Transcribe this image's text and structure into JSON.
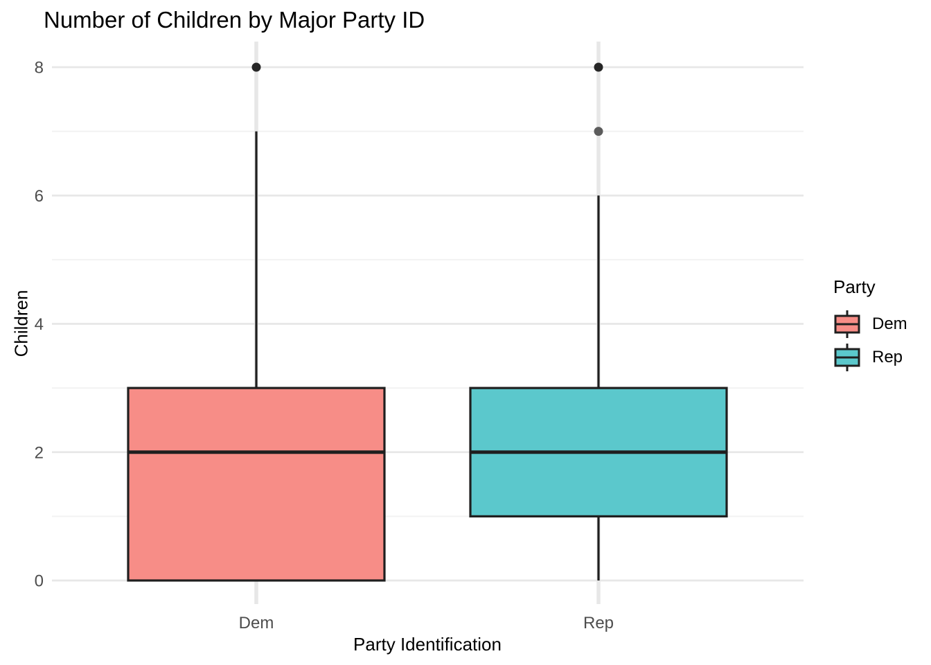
{
  "chart_data": {
    "type": "boxplot",
    "title": "Number of Children by Major Party ID",
    "xlabel": "Party Identification",
    "ylabel": "Children",
    "categories": [
      "Dem",
      "Rep"
    ],
    "y_ticks": [
      0,
      2,
      4,
      6,
      8
    ],
    "y_minor_ticks": [
      1,
      3,
      5,
      7
    ],
    "ylim": [
      0,
      8
    ],
    "grid": true,
    "legend": {
      "title": "Party",
      "position": "right",
      "items": [
        {
          "label": "Dem",
          "color": "#F78D87"
        },
        {
          "label": "Rep",
          "color": "#5BC8CC"
        }
      ]
    },
    "series": [
      {
        "name": "Dem",
        "color": "#F78D87",
        "whisker_low": 0,
        "q1": 0,
        "median": 2,
        "q3": 3,
        "whisker_high": 7,
        "outliers": [
          {
            "value": 8,
            "color": "#262626"
          }
        ]
      },
      {
        "name": "Rep",
        "color": "#5BC8CC",
        "whisker_low": 0,
        "q1": 1,
        "median": 2,
        "q3": 3,
        "whisker_high": 6,
        "outliers": [
          {
            "value": 8,
            "color": "#262626"
          },
          {
            "value": 7,
            "color": "#5C5C5C"
          }
        ]
      }
    ],
    "colors": {
      "box_border": "#1F1F1F",
      "grid_major": "#E7E7E7",
      "grid_minor": "#F2F2F2",
      "axis_text": "#4D4D4D",
      "title_text": "#000000",
      "background": "#FFFFFF"
    }
  }
}
